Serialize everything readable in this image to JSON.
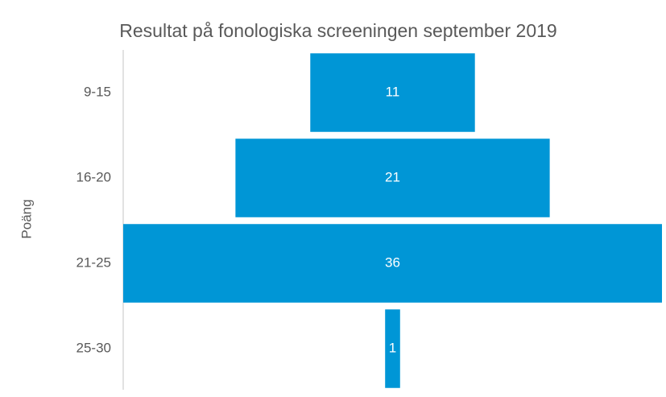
{
  "chart_data": {
    "type": "funnel",
    "title": "Resultat på fonologiska screeningen september 2019",
    "y_label": "Poäng",
    "categories": [
      "9-15",
      "16-20",
      "21-25",
      "25-30"
    ],
    "values": [
      11,
      21,
      36,
      1
    ],
    "color": "#0096d6"
  }
}
